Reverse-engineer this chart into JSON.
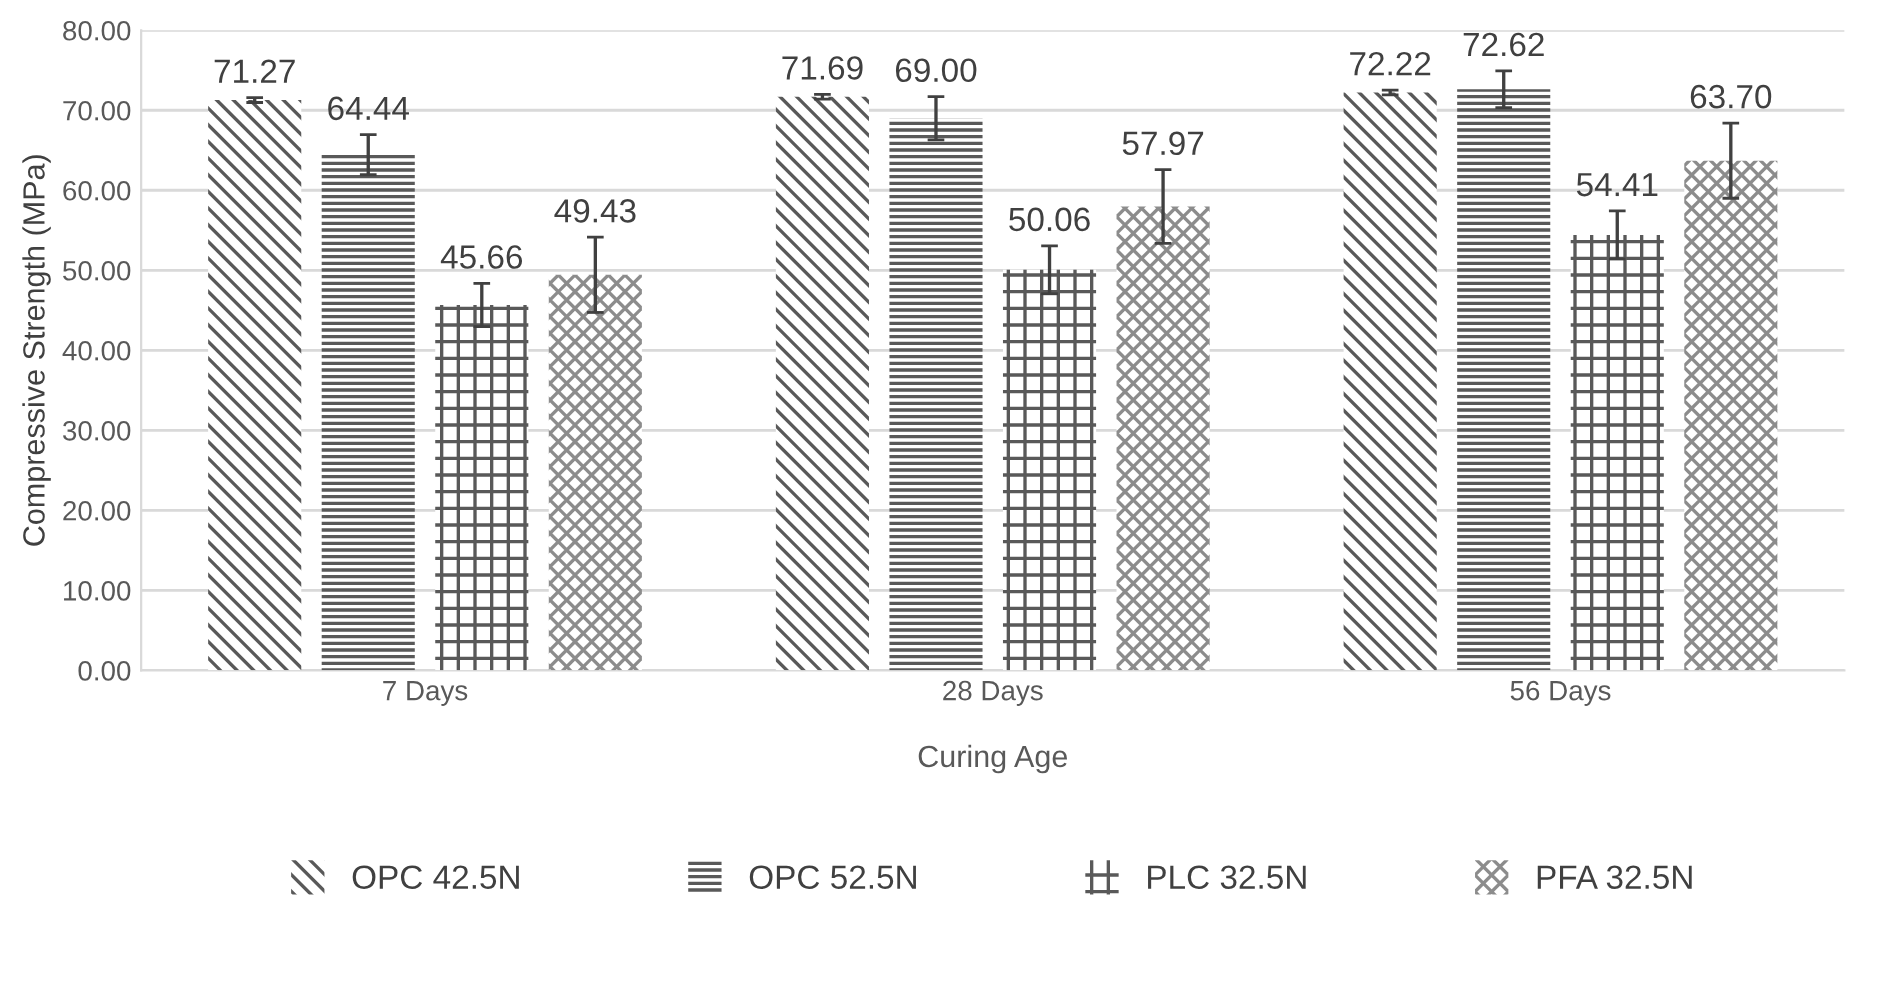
{
  "chart_data": {
    "type": "bar",
    "xlabel": "Curing Age",
    "ylabel": "Compressive Strength (MPa)",
    "categories": [
      "7 Days",
      "28 Days",
      "56 Days"
    ],
    "series": [
      {
        "name": "OPC 42.5N",
        "color": "#595959",
        "values": [
          71.27,
          71.69,
          72.22
        ],
        "errors": [
          0.3,
          0.3,
          0.3
        ],
        "value_labels": [
          "71.27",
          "71.69",
          "72.22"
        ]
      },
      {
        "name": "OPC 52.5N",
        "color": "#595959",
        "values": [
          64.44,
          69.0,
          72.62
        ],
        "errors": [
          2.5,
          2.7,
          2.3
        ],
        "value_labels": [
          "64.44",
          "69.00",
          "72.62"
        ]
      },
      {
        "name": "PLC 32.5N",
        "color": "#595959",
        "values": [
          45.66,
          50.06,
          54.41
        ],
        "errors": [
          2.7,
          3.0,
          3.0
        ],
        "value_labels": [
          "45.66",
          "50.06",
          "54.41"
        ]
      },
      {
        "name": "PFA 32.5N",
        "color": "#8c8c8c",
        "values": [
          49.43,
          57.97,
          63.7
        ],
        "errors": [
          4.7,
          4.6,
          4.7
        ],
        "value_labels": [
          "49.43",
          "57.97",
          "63.70"
        ]
      }
    ],
    "ylim": [
      0,
      80
    ],
    "yticks": [
      {
        "value": 0,
        "label": "0.00"
      },
      {
        "value": 10,
        "label": "10.00"
      },
      {
        "value": 20,
        "label": "20.00"
      },
      {
        "value": 30,
        "label": "30.00"
      },
      {
        "value": 40,
        "label": "40.00"
      },
      {
        "value": 50,
        "label": "50.00"
      },
      {
        "value": 60,
        "label": "60.00"
      },
      {
        "value": 70,
        "label": "70.00"
      },
      {
        "value": 80,
        "label": "80.00"
      }
    ],
    "grid": "y",
    "legend": "bottom"
  }
}
